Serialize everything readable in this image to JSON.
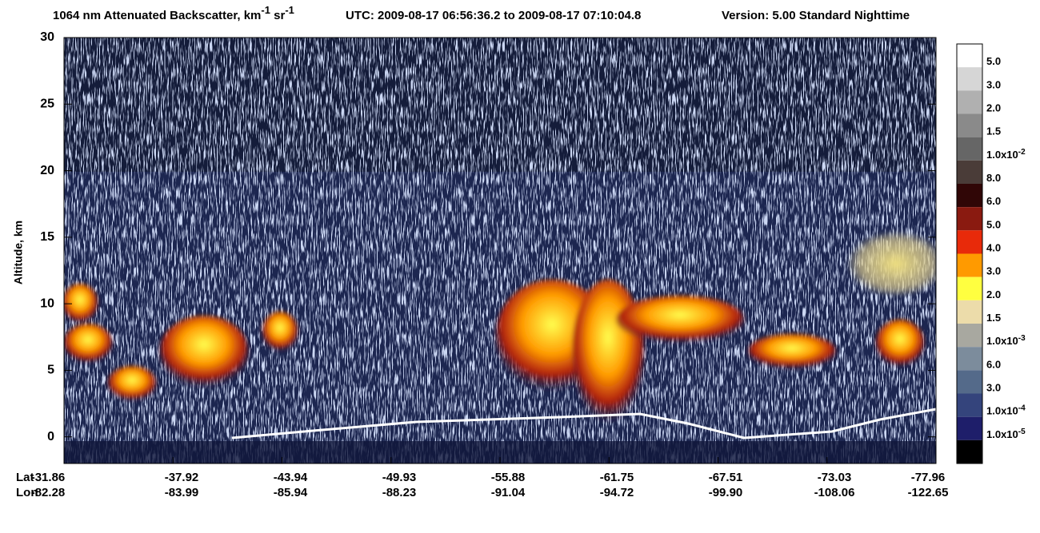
{
  "chart_data": {
    "type": "curtain",
    "title": {
      "main": "1064 nm Attenuated Backscatter, km",
      "sup1": "-1",
      "mid": " sr",
      "sup2": "-1"
    },
    "time_range": "UTC:  2009-08-17 06:56:36.2  to  2009-08-17 07:10:04.8",
    "version": "Version: 5.00  Standard  Nighttime",
    "y_label": "Altitude, km",
    "ylim": [
      -2,
      30
    ],
    "yticks": [
      0,
      5,
      10,
      15,
      20,
      25,
      30
    ],
    "x_row_labels": [
      "Lat",
      "Lon"
    ],
    "lat_labels": [
      "-31.86",
      "-37.92",
      "-43.94",
      "-49.93",
      "-55.88",
      "-61.75",
      "-67.51",
      "-73.03",
      "-77.96"
    ],
    "lon_labels": [
      "-82.28",
      "-83.99",
      "-85.94",
      "-88.23",
      "-91.04",
      "-94.72",
      "-99.90",
      "-108.06",
      "-122.65"
    ],
    "colorbar": {
      "colors": [
        "#ffffff",
        "#d6d6d6",
        "#b0b0b0",
        "#8a8a8a",
        "#666666",
        "#4a3c38",
        "#300606",
        "#8a1a10",
        "#e82a0a",
        "#ff9a00",
        "#ffff40",
        "#ecdcaa",
        "#a8a8a0",
        "#7c8c9c",
        "#546a8a",
        "#34447c",
        "#1e1e6a",
        "#000000"
      ],
      "labels": [
        {
          "text": "5.0"
        },
        {
          "text": "3.0"
        },
        {
          "text": "2.0"
        },
        {
          "text": "1.5"
        },
        {
          "text": "1.0x10",
          "sup": "-2"
        },
        {
          "text": "8.0"
        },
        {
          "text": "6.0"
        },
        {
          "text": "5.0"
        },
        {
          "text": "4.0"
        },
        {
          "text": "3.0"
        },
        {
          "text": "2.0"
        },
        {
          "text": "1.5"
        },
        {
          "text": "1.0x10",
          "sup": "-3"
        },
        {
          "text": "6.0"
        },
        {
          "text": "3.0"
        },
        {
          "text": "1.0x10",
          "sup": "-4"
        },
        {
          "text": "1.0x10",
          "sup": "-5"
        }
      ]
    }
  }
}
